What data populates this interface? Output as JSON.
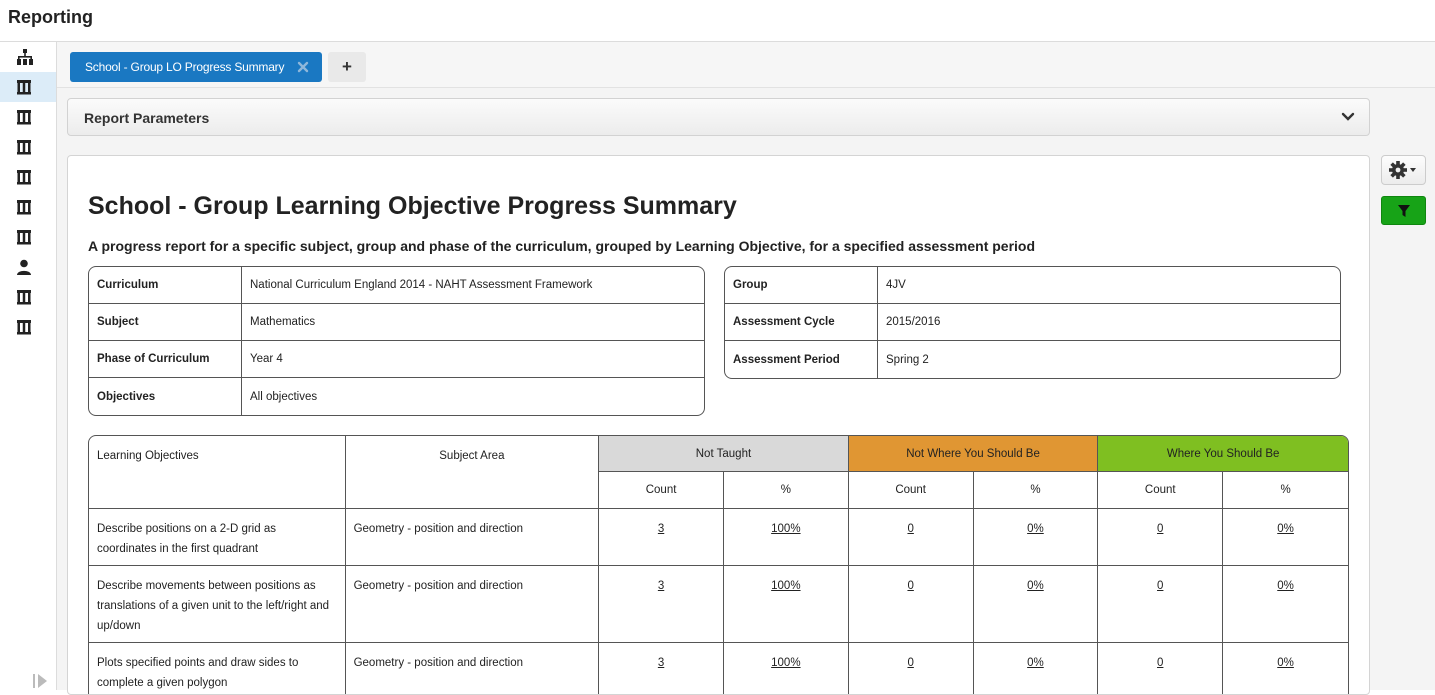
{
  "app": {
    "title": "Reporting"
  },
  "sidebar": {
    "items": [
      {
        "icon": "org-chart-icon",
        "active": false
      },
      {
        "icon": "building-icon",
        "active": true
      },
      {
        "icon": "building-icon",
        "active": false
      },
      {
        "icon": "building-icon",
        "active": false
      },
      {
        "icon": "building-icon",
        "active": false
      },
      {
        "icon": "building-icon",
        "active": false
      },
      {
        "icon": "building-icon",
        "active": false
      },
      {
        "icon": "person-icon",
        "active": false
      },
      {
        "icon": "building-icon",
        "active": false
      },
      {
        "icon": "building-icon",
        "active": false
      }
    ]
  },
  "tabs": {
    "active_label": "School - Group LO Progress Summary",
    "add_label": "+"
  },
  "params": {
    "title": "Report Parameters"
  },
  "report": {
    "title": "School - Group Learning Objective Progress Summary",
    "subtitle": "A progress report for a specific subject, group and phase of the curriculum, grouped by Learning Objective, for a specified assessment period",
    "info_left": [
      {
        "k": "Curriculum",
        "v": "National Curriculum England 2014 - NAHT Assessment Framework"
      },
      {
        "k": "Subject",
        "v": "Mathematics"
      },
      {
        "k": "Phase of Curriculum",
        "v": "Year 4"
      },
      {
        "k": "Objectives",
        "v": "All objectives"
      }
    ],
    "info_right": [
      {
        "k": "Group",
        "v": "4JV"
      },
      {
        "k": "Assessment Cycle",
        "v": "2015/2016"
      },
      {
        "k": "Assessment Period",
        "v": "Spring 2"
      }
    ],
    "table": {
      "headers": {
        "learning_objectives": "Learning Objectives",
        "subject_area": "Subject Area",
        "not_taught": "Not Taught",
        "not_where": "Not Where You Should Be",
        "where": "Where You Should Be",
        "count": "Count",
        "percent": "%"
      },
      "colors": {
        "not_taught": "#d9d9d9",
        "not_where": "#e09633",
        "where": "#7fbf21"
      },
      "rows": [
        {
          "objective": "Describe positions on a 2-D grid as coordinates in the first quadrant",
          "area": "Geometry - position and direction",
          "nt_count": "3",
          "nt_pct": "100%",
          "nw_count": "0",
          "nw_pct": "0%",
          "w_count": "0",
          "w_pct": "0%"
        },
        {
          "objective": "Describe movements between positions as translations of a given unit to the left/right and up/down",
          "area": "Geometry - position and direction",
          "nt_count": "3",
          "nt_pct": "100%",
          "nw_count": "0",
          "nw_pct": "0%",
          "w_count": "0",
          "w_pct": "0%"
        },
        {
          "objective": "Plots specified points and draw sides to complete a given polygon",
          "area": "Geometry - position and direction",
          "nt_count": "3",
          "nt_pct": "100%",
          "nw_count": "0",
          "nw_pct": "0%",
          "w_count": "0",
          "w_pct": "0%"
        }
      ]
    }
  }
}
